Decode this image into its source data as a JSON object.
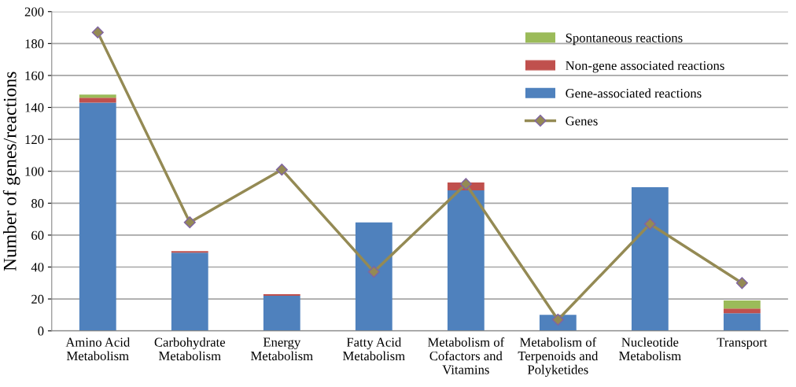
{
  "chart_data": {
    "type": "bar",
    "stacked": true,
    "ylabel": "Number of genes/reactions",
    "categories": [
      "Amino Acid\nMetabolism",
      "Carbohydrate\nMetabolism",
      "Energy\nMetabolism",
      "Fatty Acid\nMetabolism",
      "Metabolism of\nCofactors and\nVitamins",
      "Metabolism of\nTerpenoids and\nPolyketides",
      "Nucleotide\nMetabolism",
      "Transport"
    ],
    "series": [
      {
        "name": "Gene-associated reactions",
        "color": "#4f81bd",
        "values": [
          143,
          49,
          22,
          68,
          88,
          10,
          90,
          11
        ]
      },
      {
        "name": "Non-gene associated reactions",
        "color": "#c0504d",
        "values": [
          3,
          1,
          1,
          0,
          5,
          0,
          0,
          3
        ]
      },
      {
        "name": "Spontaneous reactions",
        "color": "#9bbb59",
        "values": [
          2,
          0,
          0,
          0,
          0,
          0,
          0,
          5
        ]
      },
      {
        "name": "Genes",
        "type": "line",
        "color": "#948a54",
        "marker": "diamond",
        "values": [
          187,
          68,
          101,
          37,
          92,
          7,
          67,
          30
        ]
      }
    ],
    "ylim": [
      0,
      200
    ],
    "yticks": [
      0,
      20,
      40,
      60,
      80,
      100,
      120,
      140,
      160,
      180,
      200
    ],
    "grid": "y",
    "legend": "top right"
  }
}
